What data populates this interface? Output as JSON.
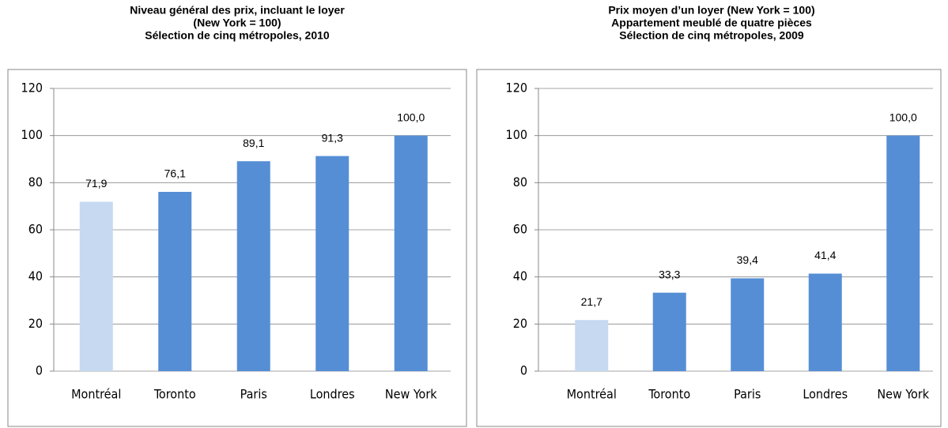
{
  "chart_data": [
    {
      "type": "bar",
      "title": [
        "Niveau général des prix, incluant le loyer",
        "(New York = 100)",
        "Sélection de cinq métropoles, 2010"
      ],
      "categories": [
        "Montréal",
        "Toronto",
        "Paris",
        "Londres",
        "New York"
      ],
      "values": [
        71.9,
        76.1,
        89.1,
        91.3,
        100.0
      ],
      "value_labels": [
        "71,9",
        "76,1",
        "89,1",
        "91,3",
        "100,0"
      ],
      "colors": [
        "#c6d9f1",
        "#558ed5",
        "#558ed5",
        "#558ed5",
        "#558ed5"
      ],
      "ylim": [
        0,
        120
      ],
      "yticks": [
        0,
        20,
        40,
        60,
        80,
        100,
        120
      ],
      "grid": true
    },
    {
      "type": "bar",
      "title": [
        "Prix moyen d’un loyer (New York = 100)",
        "Appartement meublé de quatre pièces",
        "Sélection de cinq métropoles, 2009"
      ],
      "categories": [
        "Montréal",
        "Toronto",
        "Paris",
        "Londres",
        "New York"
      ],
      "values": [
        21.7,
        33.3,
        39.4,
        41.4,
        100.0
      ],
      "value_labels": [
        "21,7",
        "33,3",
        "39,4",
        "41,4",
        "100,0"
      ],
      "colors": [
        "#c6d9f1",
        "#558ed5",
        "#558ed5",
        "#558ed5",
        "#558ed5"
      ],
      "ylim": [
        0,
        120
      ],
      "yticks": [
        0,
        20,
        40,
        60,
        80,
        100,
        120
      ],
      "grid": true
    }
  ]
}
